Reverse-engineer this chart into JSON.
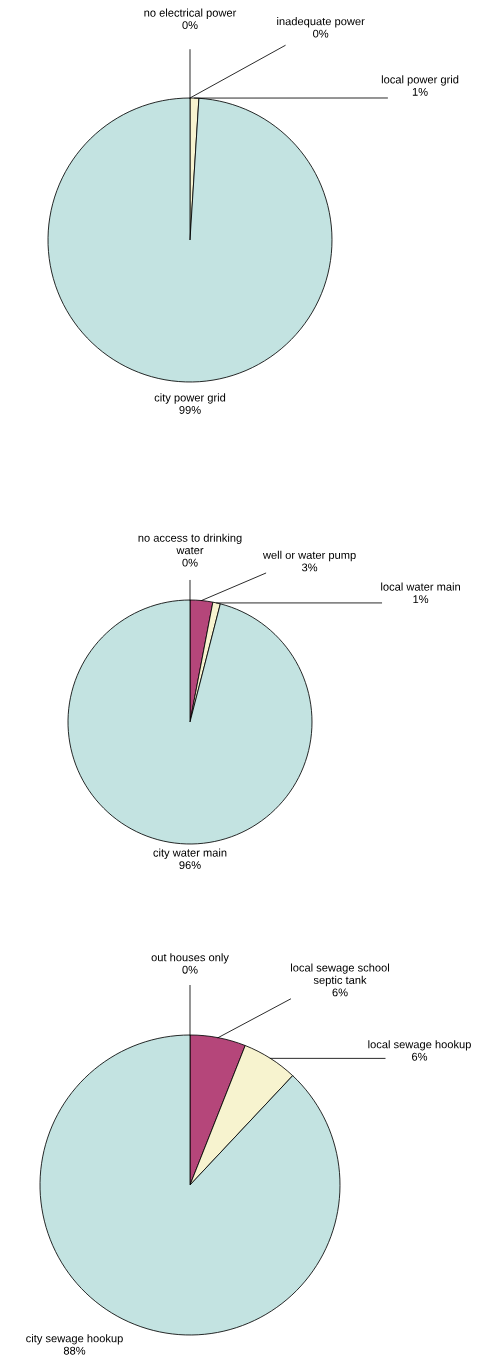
{
  "chart_data": [
    {
      "type": "pie",
      "categories": [
        "no electrical power",
        "inadequate power",
        "local power grid",
        "city power grid"
      ],
      "values": [
        0,
        0,
        1,
        99
      ],
      "value_labels": [
        "0%",
        "0%",
        "1%",
        "99%"
      ],
      "colors": [
        "#b5467a",
        "#b5467a",
        "#f7f3cf",
        "#c3e3e1"
      ]
    },
    {
      "type": "pie",
      "categories": [
        "no access to drinking\nwater",
        "well or water pump",
        "local water main",
        "city water main"
      ],
      "values": [
        0,
        3,
        1,
        96
      ],
      "value_labels": [
        "0%",
        "3%",
        "1%",
        "96%"
      ],
      "colors": [
        "#b5467a",
        "#b5467a",
        "#f7f3cf",
        "#c3e3e1"
      ]
    },
    {
      "type": "pie",
      "categories": [
        "out houses only",
        "local sewage school\nseptic tank",
        "local sewage hookup",
        "city sewage hookup"
      ],
      "values": [
        0,
        6,
        6,
        88
      ],
      "value_labels": [
        "0%",
        "6%",
        "6%",
        "88%"
      ],
      "colors": [
        "#b5467a",
        "#b5467a",
        "#f7f3cf",
        "#c3e3e1"
      ]
    }
  ]
}
